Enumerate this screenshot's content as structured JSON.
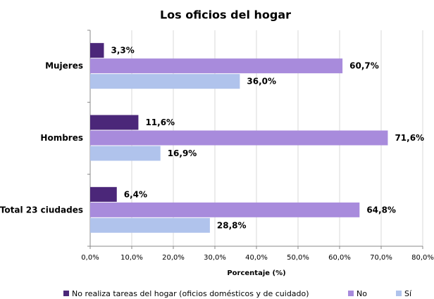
{
  "chart_data": {
    "type": "barh",
    "title": "Los oficios del hogar",
    "x_label": "Porcentaje (%)",
    "categories": [
      "Mujeres",
      "Hombres",
      "Total 23 ciudades"
    ],
    "series": [
      {
        "name": "No realiza tareas del hogar (oficios domésticos y de cuidado)",
        "color": "#4b2779",
        "values": [
          3.3,
          11.6,
          6.4
        ],
        "value_labels": [
          "3,3%",
          "11,6%",
          "6,4%"
        ]
      },
      {
        "name": "No",
        "color": "#a88bdc",
        "values": [
          60.7,
          71.6,
          64.8
        ],
        "value_labels": [
          "60,7%",
          "71,6%",
          "64,8%"
        ]
      },
      {
        "name": "Sí",
        "color": "#b0c3ec",
        "values": [
          36.0,
          16.9,
          28.8
        ],
        "value_labels": [
          "36,0%",
          "16,9%",
          "28,8%"
        ]
      }
    ],
    "xlim": [
      0,
      80
    ],
    "xticks": [
      {
        "value": 0,
        "label": "0,0%"
      },
      {
        "value": 10,
        "label": "10,0%"
      },
      {
        "value": 20,
        "label": "20,0%"
      },
      {
        "value": 30,
        "label": "30,0%"
      },
      {
        "value": 40,
        "label": "40,0%"
      },
      {
        "value": 50,
        "label": "50,0%"
      },
      {
        "value": 60,
        "label": "60,0%"
      },
      {
        "value": 70,
        "label": "70,0%"
      },
      {
        "value": 80,
        "label": "80,0%"
      }
    ],
    "grid": true,
    "legend": "bottom"
  }
}
